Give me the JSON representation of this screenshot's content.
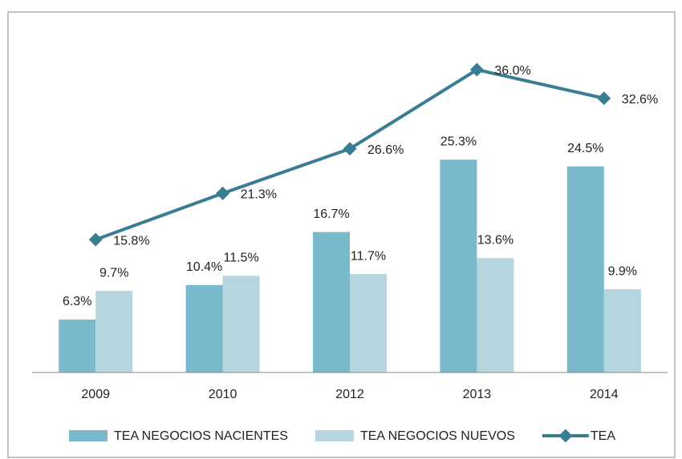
{
  "chart_data": {
    "type": "bar",
    "categories": [
      "2009",
      "2010",
      "2012",
      "2013",
      "2014"
    ],
    "series": [
      {
        "name": "TEA NEGOCIOS NACIENTES",
        "type": "bar",
        "color": "#7ab8cc",
        "values": [
          6.3,
          10.4,
          16.7,
          25.3,
          24.5
        ],
        "value_labels": [
          "6.3%",
          "10.4%",
          "16.7%",
          "25.3%",
          "24.5%"
        ]
      },
      {
        "name": "TEA NEGOCIOS NUEVOS",
        "type": "bar",
        "color": "#b5d5df",
        "values": [
          9.7,
          11.5,
          11.7,
          13.6,
          9.9
        ],
        "value_labels": [
          "9.7%",
          "11.5%",
          "11.7%",
          "13.6%",
          "9.9%"
        ]
      },
      {
        "name": "TEA",
        "type": "line",
        "color": "#3a7d93",
        "values": [
          15.8,
          21.3,
          26.6,
          36.0,
          32.6
        ],
        "value_labels": [
          "15.8%",
          "21.3%",
          "26.6%",
          "36.0%",
          "32.6%"
        ]
      }
    ],
    "ylim": [
      0,
      40
    ],
    "legend": "bottom"
  }
}
